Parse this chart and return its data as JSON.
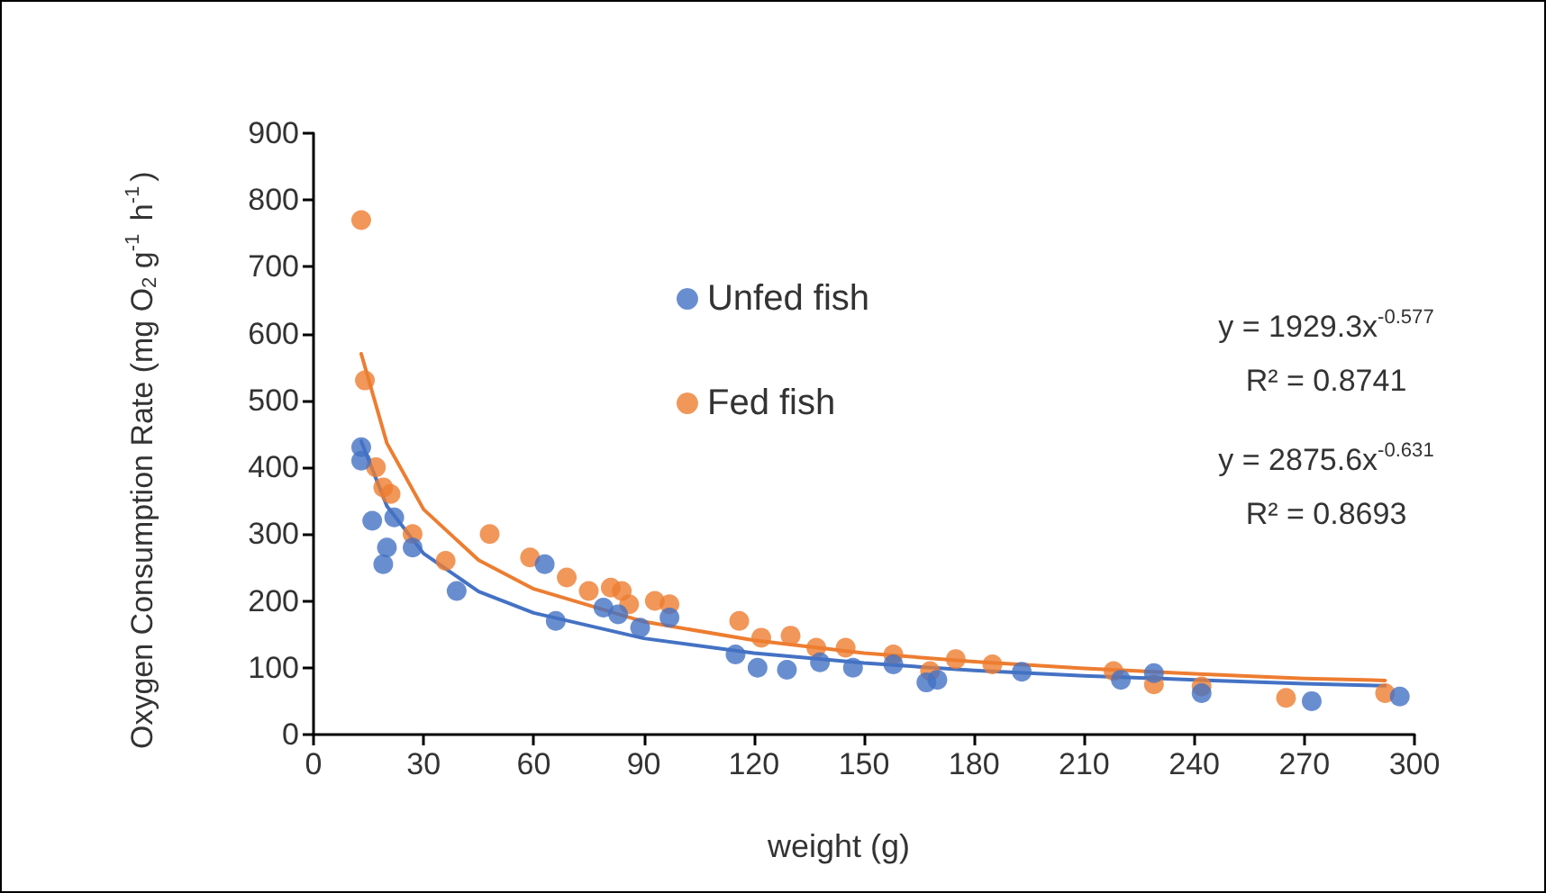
{
  "chart_data": {
    "type": "scatter",
    "xlabel": "weight (g)",
    "ylabel": "Oxygen Consumption Rate (mg O$_{2}$ g$^{-1}$ h$^{-1}$)",
    "xlim": [
      0,
      300
    ],
    "xticks": [
      0,
      30,
      60,
      90,
      120,
      150,
      180,
      210,
      240,
      270,
      300
    ],
    "ylim": [
      0,
      900
    ],
    "yticks": [
      0,
      100,
      200,
      300,
      400,
      500,
      600,
      700,
      800,
      900
    ],
    "grid": false,
    "legend": "top",
    "marker": "circle",
    "annotations": [
      "y = 1929.3x$^{-0.577}$",
      "R² = 0.8741",
      "y = 2875.6x$^{-0.631}$",
      "R² = 0.8693"
    ],
    "series": [
      {
        "name": "Fed fish",
        "color": "#ed7d31",
        "x": [
          13,
          14,
          17,
          19,
          21,
          27,
          36,
          48,
          59,
          69,
          75,
          81,
          84,
          86,
          93,
          97,
          116,
          122,
          130,
          137,
          145,
          158,
          168,
          175,
          185,
          218,
          229,
          242,
          265,
          292
        ],
        "values": [
          770,
          530,
          400,
          370,
          360,
          300,
          260,
          300,
          265,
          235,
          215,
          220,
          215,
          195,
          200,
          195,
          170,
          145,
          148,
          130,
          130,
          120,
          95,
          113,
          105,
          95,
          75,
          72,
          55,
          62
        ]
      },
      {
        "name": "Unfed fish",
        "color": "#4472c4",
        "x": [
          13,
          13,
          16,
          19,
          20,
          22,
          27,
          39,
          63,
          66,
          79,
          83,
          89,
          97,
          115,
          121,
          129,
          138,
          147,
          158,
          167,
          170,
          193,
          220,
          229,
          242,
          272,
          296
        ],
        "values": [
          430,
          410,
          320,
          255,
          280,
          325,
          280,
          215,
          255,
          170,
          190,
          180,
          160,
          175,
          120,
          100,
          97,
          108,
          100,
          105,
          78,
          82,
          94,
          82,
          92,
          62,
          50,
          57
        ]
      },
      {
        "type": "line",
        "marker": "none",
        "color": "#ed7d31",
        "x": [
          13,
          20,
          30,
          45,
          60,
          90,
          120,
          150,
          180,
          210,
          240,
          270,
          292
        ],
        "values": [
          570,
          436,
          337,
          261,
          218,
          169,
          141,
          122,
          109,
          99,
          91,
          84,
          81
        ]
      },
      {
        "type": "line",
        "marker": "none",
        "color": "#4472c4",
        "x": [
          13,
          20,
          30,
          45,
          60,
          90,
          120,
          150,
          180,
          210,
          240,
          270,
          292
        ],
        "values": [
          439,
          342,
          271,
          214,
          182,
          144,
          122,
          107,
          96,
          88,
          82,
          76,
          73
        ]
      }
    ]
  }
}
